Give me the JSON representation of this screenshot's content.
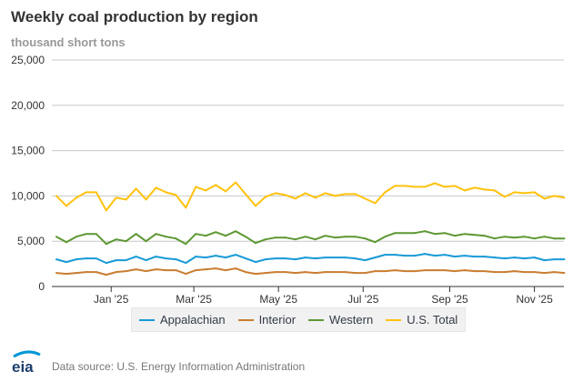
{
  "header": {
    "title": "Weekly coal production by region",
    "subtitle": "thousand short tons"
  },
  "footer": {
    "logo_text": "eia",
    "source": "Data source: U.S. Energy Information Administration"
  },
  "chart_data": {
    "type": "line",
    "title": "Weekly coal production by region",
    "ylabel": "thousand short tons",
    "xlabel": "",
    "ylim": [
      0,
      25000
    ],
    "yticks": [
      0,
      5000,
      10000,
      15000,
      20000,
      25000
    ],
    "ytick_labels": [
      "0",
      "5,000",
      "10,000",
      "15,000",
      "20,000",
      "25,000"
    ],
    "xtick_labels": [
      "Jan '25",
      "Mar '25",
      "May '25",
      "Jul '25",
      "Sep '25",
      "Nov '25"
    ],
    "xtick_weeks": [
      5.5,
      13.8,
      22.3,
      30.8,
      39.5,
      48.0
    ],
    "grid": true,
    "legend_position": "bottom",
    "weeks": 52,
    "series": [
      {
        "name": "Appalachian",
        "color": "#189ad6",
        "values": [
          3000,
          2700,
          3000,
          3100,
          3100,
          2600,
          2900,
          2900,
          3300,
          2900,
          3300,
          3100,
          3000,
          2600,
          3300,
          3200,
          3400,
          3200,
          3500,
          3100,
          2700,
          3000,
          3100,
          3100,
          3000,
          3200,
          3100,
          3200,
          3200,
          3200,
          3100,
          2900,
          3200,
          3500,
          3500,
          3400,
          3400,
          3600,
          3400,
          3500,
          3300,
          3400,
          3300,
          3300,
          3200,
          3100,
          3200,
          3100,
          3200,
          2900,
          3000,
          3000
        ]
      },
      {
        "name": "Interior",
        "color": "#c97d31",
        "values": [
          1500,
          1400,
          1500,
          1600,
          1600,
          1300,
          1600,
          1700,
          1900,
          1700,
          1900,
          1800,
          1800,
          1400,
          1800,
          1900,
          2000,
          1800,
          2000,
          1600,
          1400,
          1500,
          1600,
          1600,
          1500,
          1600,
          1500,
          1600,
          1600,
          1600,
          1500,
          1500,
          1700,
          1700,
          1800,
          1700,
          1700,
          1800,
          1800,
          1800,
          1700,
          1800,
          1700,
          1700,
          1600,
          1600,
          1700,
          1600,
          1600,
          1500,
          1600,
          1500
        ]
      },
      {
        "name": "Western",
        "color": "#5d9732",
        "values": [
          5500,
          4900,
          5500,
          5800,
          5800,
          4700,
          5200,
          5000,
          5800,
          5000,
          5800,
          5500,
          5300,
          4700,
          5800,
          5600,
          6000,
          5600,
          6100,
          5500,
          4800,
          5200,
          5400,
          5400,
          5200,
          5500,
          5200,
          5600,
          5400,
          5500,
          5500,
          5300,
          4900,
          5500,
          5900,
          5900,
          5900,
          6100,
          5800,
          5900,
          5600,
          5800,
          5700,
          5600,
          5300,
          5500,
          5400,
          5500,
          5300,
          5500,
          5300,
          5300
        ]
      },
      {
        "name": "U.S. Total",
        "color": "#ffc20e",
        "values": [
          10000,
          8900,
          9800,
          10400,
          10400,
          8400,
          9800,
          9600,
          10800,
          9600,
          10900,
          10400,
          10100,
          8700,
          11000,
          10600,
          11200,
          10500,
          11500,
          10200,
          8900,
          9900,
          10300,
          10100,
          9700,
          10300,
          9800,
          10300,
          10000,
          10200,
          10200,
          9700,
          9200,
          10400,
          11100,
          11100,
          11000,
          11000,
          11400,
          11000,
          11100,
          10600,
          10900,
          10700,
          10600,
          9900,
          10400,
          10300,
          10400,
          9700,
          10000,
          9800
        ]
      }
    ]
  }
}
